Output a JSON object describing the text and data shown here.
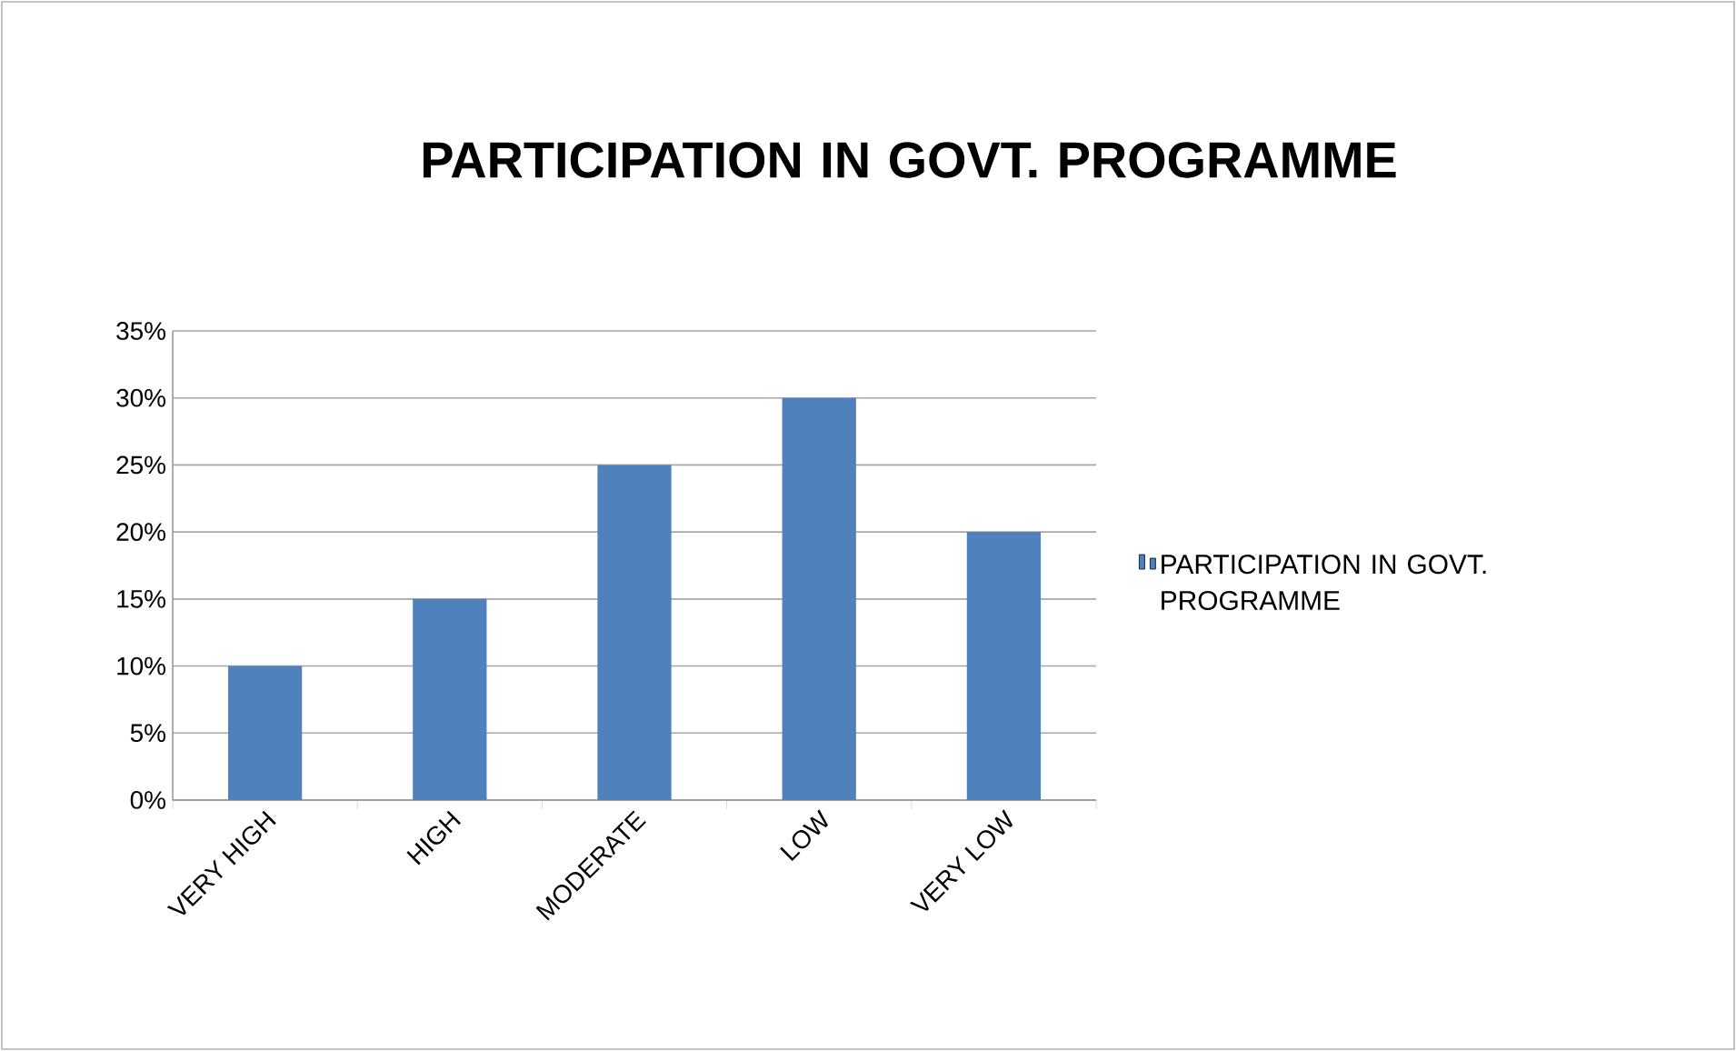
{
  "chart_data": {
    "type": "bar",
    "title": "PARTICIPATION IN GOVT. PROGRAMME",
    "categories": [
      "VERY HIGH",
      "HIGH",
      "MODERATE",
      "LOW",
      "VERY LOW"
    ],
    "series": [
      {
        "name": "PARTICIPATION IN GOVT. PROGRAMME",
        "color": "#4f81bd",
        "values": [
          10,
          15,
          25,
          30,
          20
        ]
      }
    ],
    "ylim": [
      0,
      35
    ],
    "yticks": [
      {
        "value": 0,
        "label": "0%"
      },
      {
        "value": 5,
        "label": "5%"
      },
      {
        "value": 10,
        "label": "10%"
      },
      {
        "value": 15,
        "label": "15%"
      },
      {
        "value": 20,
        "label": "20%"
      },
      {
        "value": 25,
        "label": "25%"
      },
      {
        "value": 30,
        "label": "30%"
      },
      {
        "value": 35,
        "label": "35%"
      }
    ],
    "grid": "y",
    "legend": "right"
  }
}
